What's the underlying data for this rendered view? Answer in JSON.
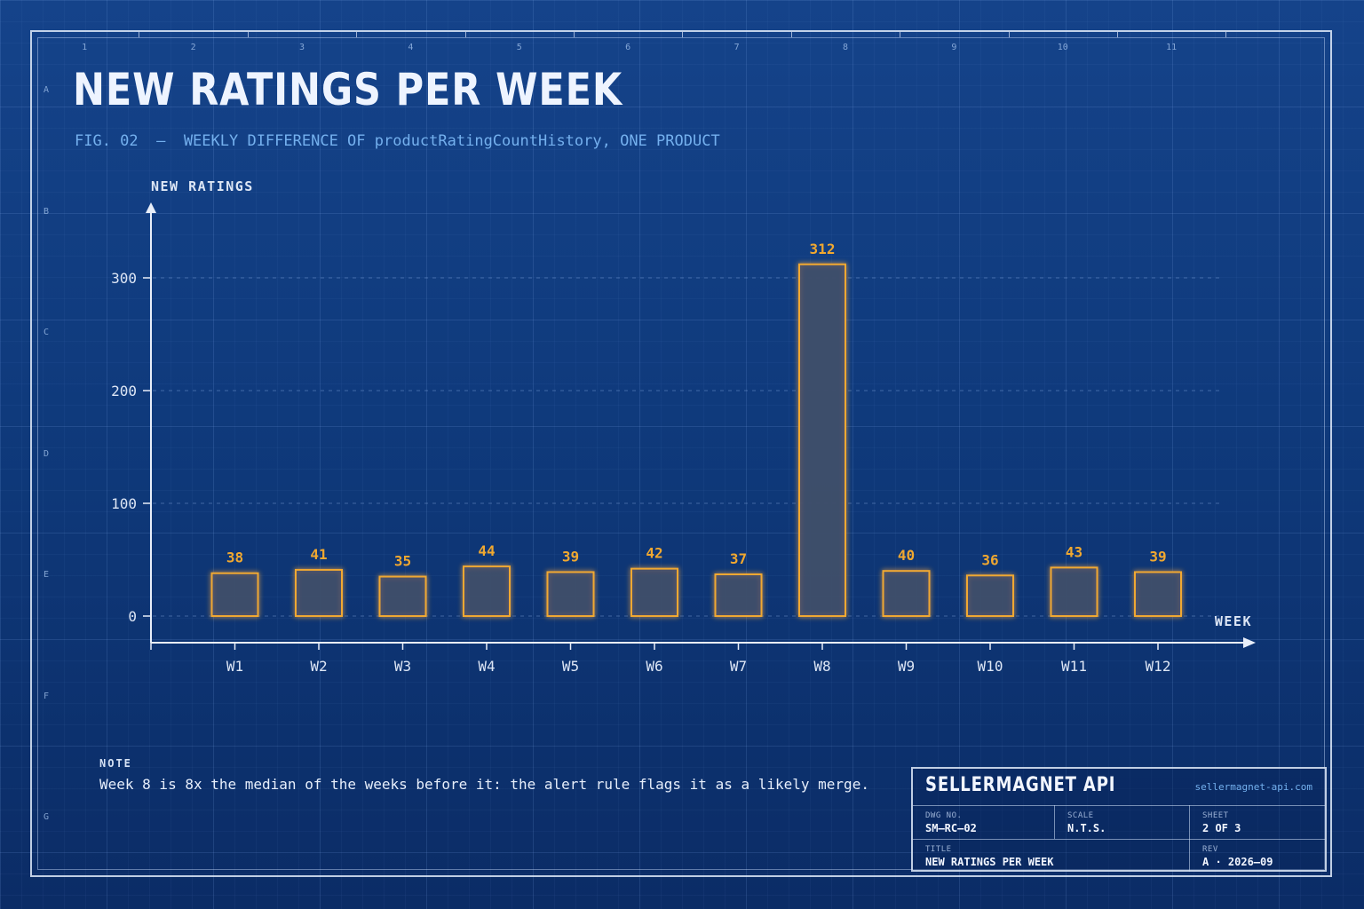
{
  "sheet": {
    "title": "NEW RATINGS PER WEEK",
    "subtitle": "FIG. 02  —  WEEKLY DIFFERENCE OF productRatingCountHistory, ONE PRODUCT",
    "column_numbers": [
      "1",
      "2",
      "3",
      "4",
      "5",
      "6",
      "7",
      "8",
      "9",
      "10",
      "11"
    ],
    "row_letters": [
      "A",
      "B",
      "C",
      "D",
      "E",
      "F",
      "G"
    ]
  },
  "note": {
    "label": "NOTE",
    "text": "Week 8 is 8x the median of the weeks before it: the alert rule flags it as a likely merge."
  },
  "title_block": {
    "company": "SELLERMAGNET API",
    "url": "sellermagnet-api.com",
    "dwg_caption": "DWG NO.",
    "dwg_value": "SM–RC–02",
    "scale_caption": "SCALE",
    "scale_value": "N.T.S.",
    "sheet_caption": "SHEET",
    "sheet_value": "2 OF 3",
    "title_caption": "TITLE",
    "title_value": "NEW RATINGS PER WEEK",
    "rev_caption": "REV",
    "rev_value": "A · 2026–09"
  },
  "colors": {
    "accent": "#f0a830",
    "axis": "#e8eef9",
    "text": "#dde6f5",
    "bar_fill": "#3e4d6a"
  },
  "chart_data": {
    "type": "bar",
    "title": "NEW RATINGS PER WEEK",
    "xlabel": "WEEK",
    "ylabel": "NEW RATINGS",
    "categories": [
      "W1",
      "W2",
      "W3",
      "W4",
      "W5",
      "W6",
      "W7",
      "W8",
      "W9",
      "W10",
      "W11",
      "W12"
    ],
    "values": [
      38,
      41,
      35,
      44,
      39,
      42,
      37,
      312,
      40,
      36,
      43,
      39
    ],
    "ylim": [
      0,
      360
    ],
    "yticks": [
      0,
      100,
      200,
      300
    ],
    "grid": true,
    "data_labels": true
  }
}
